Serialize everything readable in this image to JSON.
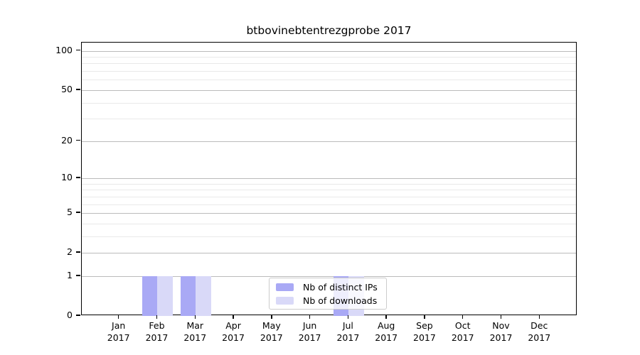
{
  "chart_data": {
    "type": "bar",
    "title": "btbovinebtentrezgprobe 2017",
    "categories": [
      "Jan",
      "Feb",
      "Mar",
      "Apr",
      "May",
      "Jun",
      "Jul",
      "Aug",
      "Sep",
      "Oct",
      "Nov",
      "Dec"
    ],
    "tick_year": "2017",
    "series": [
      {
        "name": "Nb of distinct IPs",
        "color": "#a9a9f5",
        "values": [
          0,
          1,
          1,
          0,
          0,
          0,
          1,
          0,
          0,
          0,
          0,
          0
        ]
      },
      {
        "name": "Nb of downloads",
        "color": "#d9d9f8",
        "values": [
          0,
          1,
          1,
          0,
          0,
          0,
          1,
          0,
          0,
          0,
          0,
          0
        ]
      }
    ],
    "y_axis": {
      "scale": "log1p",
      "major_ticks": [
        0,
        1,
        2,
        5,
        10,
        20,
        50,
        100
      ],
      "minor_ticks": [
        3,
        4,
        6,
        7,
        8,
        9,
        30,
        40,
        60,
        70,
        80,
        90
      ],
      "ylim": [
        0,
        115
      ]
    },
    "xlabel": "",
    "ylabel": "",
    "grid": true,
    "legend_position": "inside-bottom-center"
  },
  "colors": {
    "background": "#ffffff",
    "bar_distinct_ips": "#a9a9f5",
    "bar_downloads": "#d9d9f8",
    "grid_major": "#bbbbbb",
    "grid_minor": "#e9e9e9",
    "spine": "#000000",
    "text": "#000000",
    "legend_border": "#cccccc"
  }
}
